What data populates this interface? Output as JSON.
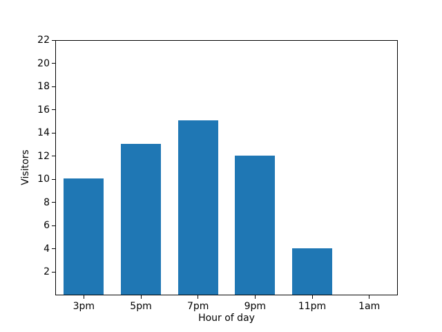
{
  "chart_data": {
    "type": "bar",
    "categories": [
      "3pm",
      "5pm",
      "7pm",
      "9pm",
      "11pm",
      "1am"
    ],
    "values": [
      10,
      13,
      15,
      12,
      4,
      0
    ],
    "xlabel": "Hour of day",
    "ylabel": "Visitors",
    "ylim": [
      0,
      22
    ],
    "yticks": [
      2,
      4,
      6,
      8,
      10,
      12,
      14,
      16,
      18,
      20,
      22
    ],
    "bar_color": "#1f77b4",
    "axis_color": "#000000",
    "background_color": "#ffffff",
    "grid": false,
    "legend": null,
    "bar_width_fraction": 0.7
  }
}
